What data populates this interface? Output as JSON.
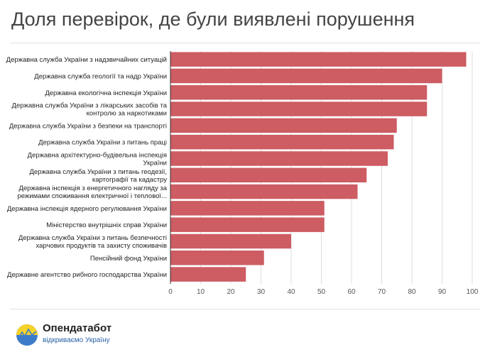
{
  "chart_data": {
    "type": "bar",
    "orientation": "horizontal",
    "title": "Доля перевірок, де були виявлені порушення",
    "categories": [
      [
        "Державна служба України з надзвичайних ситуацій"
      ],
      [
        "Державна служба геології та надр України"
      ],
      [
        "Державна екологічна інспекція України"
      ],
      [
        "Державна служба України з лікарських засобів та",
        "контролю за наркотиками"
      ],
      [
        "Державна служба України з безпеки на транспорті"
      ],
      [
        "Державна служба України з питань праці"
      ],
      [
        "Державна архітектурно-будівельна інспекція",
        "України"
      ],
      [
        "Державна служба України з питань геодезії,",
        "картографії та кадастру"
      ],
      [
        "Державна інспекція з енергетичного нагляду за",
        "режимами споживання електричної і теплової..."
      ],
      [
        "Державна інспекція ядерного регулювання України"
      ],
      [
        "Міністерство внутрішніх справ України"
      ],
      [
        "Державна служба України з питань безпечності",
        "харчових продуктів та захисту споживачів"
      ],
      [
        "Пенсійний фонд України"
      ],
      [
        "Державне агентство рибного господарства України"
      ]
    ],
    "values": [
      98,
      90,
      85,
      85,
      75,
      74,
      72,
      65,
      62,
      51,
      51,
      40,
      31,
      25
    ],
    "xlim": [
      0,
      100
    ],
    "xticks": [
      "0",
      "10",
      "20",
      "30",
      "40",
      "50",
      "60",
      "70",
      "80",
      "90",
      "100"
    ],
    "grid": "vertical",
    "bar_color": "#cd5c63",
    "legend": "none"
  },
  "logo": {
    "name": "Опендатабот",
    "tagline": "відкриваємо Україну",
    "colors": [
      "#f6d22a",
      "#3d7cc9"
    ]
  }
}
